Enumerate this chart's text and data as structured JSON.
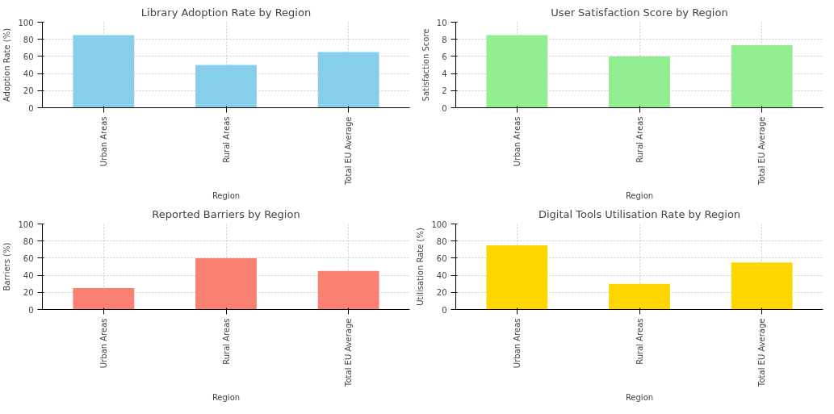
{
  "chart_data": [
    {
      "type": "bar",
      "title": "Library Adoption Rate by Region",
      "xlabel": "Region",
      "ylabel": "Adoption Rate (%)",
      "categories": [
        "Urban Areas",
        "Rural Areas",
        "Total EU Average"
      ],
      "values": [
        85,
        50,
        65
      ],
      "color": "#87ceeb",
      "ylim": [
        0,
        100
      ],
      "yticks": [
        0,
        20,
        40,
        60,
        80,
        100
      ],
      "grid": true
    },
    {
      "type": "bar",
      "title": "User Satisfaction Score by Region",
      "xlabel": "Region",
      "ylabel": "Satisfaction Score",
      "categories": [
        "Urban Areas",
        "Rural Areas",
        "Total EU Average"
      ],
      "values": [
        8.5,
        6,
        7.3
      ],
      "color": "#90ee90",
      "ylim": [
        0,
        10
      ],
      "yticks": [
        0,
        2,
        4,
        6,
        8,
        10
      ],
      "grid": true
    },
    {
      "type": "bar",
      "title": "Reported Barriers by Region",
      "xlabel": "Region",
      "ylabel": "Barriers (%)",
      "categories": [
        "Urban Areas",
        "Rural Areas",
        "Total EU Average"
      ],
      "values": [
        25,
        60,
        45
      ],
      "color": "#fa8072",
      "ylim": [
        0,
        100
      ],
      "yticks": [
        0,
        20,
        40,
        60,
        80,
        100
      ],
      "grid": true
    },
    {
      "type": "bar",
      "title": "Digital Tools Utilisation Rate by Region",
      "xlabel": "Region",
      "ylabel": "Utilisation Rate (%)",
      "categories": [
        "Urban Areas",
        "Rural Areas",
        "Total EU Average"
      ],
      "values": [
        75,
        30,
        55
      ],
      "color": "#ffd700",
      "ylim": [
        0,
        100
      ],
      "yticks": [
        0,
        20,
        40,
        60,
        80,
        100
      ],
      "grid": true
    }
  ]
}
